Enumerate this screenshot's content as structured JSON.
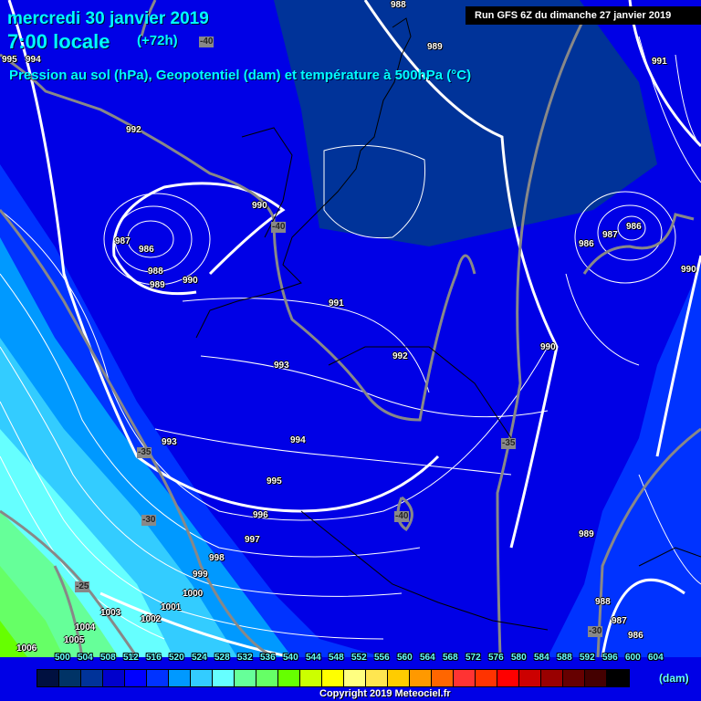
{
  "header": {
    "date": "mercredi 30 janvier 2019",
    "time": "7:00 locale",
    "lead": "(+72h)",
    "subtitle": "Pression au sol (hPa), Geopotentiel (dam) et température à 500hPa (°C)",
    "run": "Run GFS 6Z du dimanche 27 janvier 2019"
  },
  "legend": {
    "unit": "(dam)",
    "levels": [
      "500",
      "504",
      "508",
      "512",
      "516",
      "520",
      "524",
      "528",
      "532",
      "536",
      "540",
      "544",
      "548",
      "552",
      "556",
      "560",
      "564",
      "568",
      "572",
      "576",
      "580",
      "584",
      "588",
      "592",
      "596",
      "600",
      "604"
    ],
    "colors": [
      "#001040",
      "#003366",
      "#003399",
      "#0000cc",
      "#0000ff",
      "#0033ff",
      "#0099ff",
      "#33ccff",
      "#66ffff",
      "#66ff99",
      "#66ff66",
      "#66ff00",
      "#ccff00",
      "#ffff00",
      "#ffff80",
      "#ffe650",
      "#ffcc00",
      "#ff9900",
      "#ff6600",
      "#ff3333",
      "#ff3300",
      "#ff0000",
      "#cc0000",
      "#990000",
      "#660000",
      "#440000",
      "#000000"
    ]
  },
  "map": {
    "pressure_labels": [
      "988",
      "989",
      "991",
      "992",
      "990",
      "987",
      "986",
      "988",
      "989",
      "990",
      "986",
      "987",
      "986",
      "990",
      "991",
      "992",
      "993",
      "990",
      "993",
      "994",
      "995",
      "996",
      "997",
      "998",
      "989",
      "999",
      "1000",
      "1001",
      "1003",
      "1002",
      "1004",
      "1005",
      "988",
      "987",
      "986",
      "1006",
      "995",
      "994"
    ],
    "temperature_labels": [
      "-40",
      "-40",
      "-35",
      "-35",
      "-30",
      "-40",
      "-25",
      "-30"
    ]
  },
  "copyright": "Copyright 2019 Meteociel.fr"
}
